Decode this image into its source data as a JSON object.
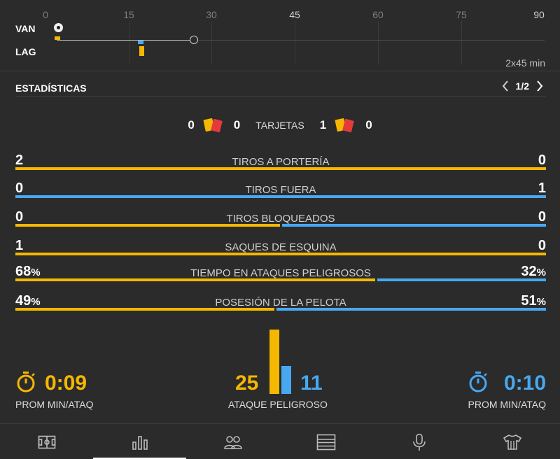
{
  "timeline": {
    "ticks": [
      "0",
      "15",
      "30",
      "45",
      "60",
      "75",
      "90"
    ],
    "home_code": "VAN",
    "away_code": "LAG",
    "duration": "2x45 min",
    "progress_minute": 27
  },
  "stats": {
    "title": "ESTADÍSTICAS",
    "page": "1/2",
    "cards": {
      "home_yellow": "0",
      "home_red": "0",
      "label": "TARJETAS",
      "away_yellow": "1",
      "away_red": "0"
    },
    "rows": [
      {
        "label": "TIROS A PORTERÍA",
        "home": "2",
        "away": "0",
        "home_share": 100
      },
      {
        "label": "TIROS FUERA",
        "home": "0",
        "away": "1",
        "home_share": 0
      },
      {
        "label": "TIROS BLOQUEADOS",
        "home": "0",
        "away": "0",
        "home_share": 50
      },
      {
        "label": "SAQUES DE ESQUINA",
        "home": "1",
        "away": "0",
        "home_share": 100
      },
      {
        "label": "TIEMPO EN ATAQUES PELIGROSOS",
        "home": "68",
        "away": "32",
        "home_share": 68,
        "unit": "%"
      },
      {
        "label": "POSESIÓN DE LA PELOTA",
        "home": "49",
        "away": "51",
        "home_share": 49,
        "unit": "%"
      }
    ]
  },
  "summary": {
    "home_time": "0:09",
    "home_label": "PROM MIN/ATAQ",
    "dangerous_home": "25",
    "dangerous_away": "11",
    "dangerous_label": "ATAQUE PELIGROSO",
    "away_time": "0:10",
    "away_label": "PROM MIN/ATAQ"
  },
  "colors": {
    "home": "#f5b800",
    "away": "#47a8f0",
    "background": "#2b2b2b"
  },
  "nav": {
    "items": [
      "pitch-icon",
      "stats-icon",
      "lineups-icon",
      "standings-icon",
      "commentary-icon",
      "shirt-icon"
    ],
    "active": "stats-icon"
  }
}
